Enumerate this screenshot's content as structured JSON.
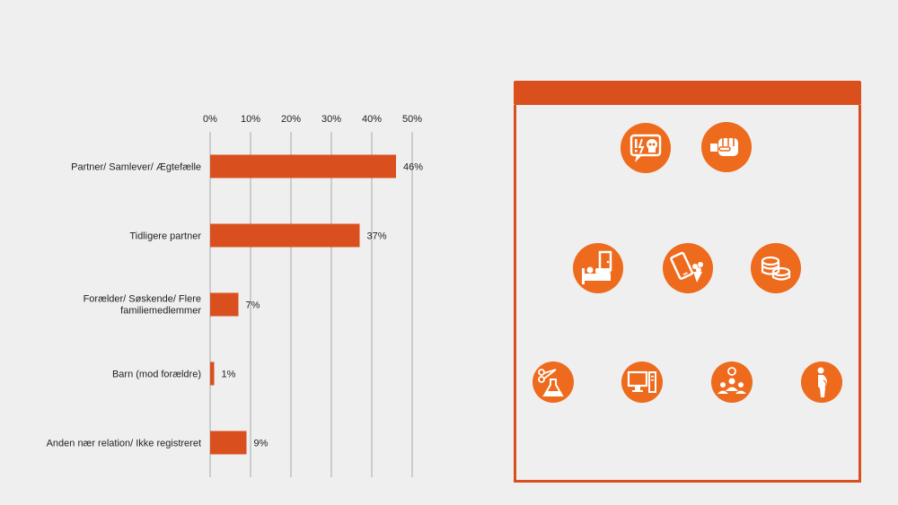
{
  "chart_data": {
    "type": "bar",
    "orientation": "horizontal",
    "categories": [
      "Partner/ Samlever/ Ægtefælle",
      "Tidligere partner",
      "Forælder/ Søskende/ Flere familiemedlemmer",
      "Barn (mod forældre)",
      "Anden nær relation/ Ikke registreret"
    ],
    "values": [
      46,
      37,
      7,
      1,
      9
    ],
    "value_labels": [
      "46%",
      "37%",
      "7%",
      "1%",
      "9%"
    ],
    "xlim": [
      0,
      50
    ],
    "xticks": [
      0,
      10,
      20,
      30,
      40,
      50
    ],
    "xtick_labels": [
      "0%",
      "10%",
      "20%",
      "30%",
      "40%",
      "50%"
    ],
    "x_axis_position": "top",
    "grid": true,
    "bar_color": "#d9501e"
  },
  "panel": {
    "accent_color": "#d9501e",
    "icon_color": "#ee6a1c",
    "icons": [
      "threat-speech-skull-icon",
      "fist-icon",
      "door-bed-confinement-icon",
      "phone-flowers-icon",
      "coins-icon",
      "scissors-flask-icon",
      "computer-icon",
      "group-people-icon",
      "pregnant-woman-icon"
    ]
  }
}
